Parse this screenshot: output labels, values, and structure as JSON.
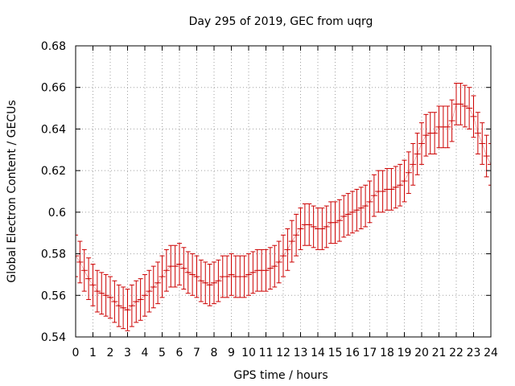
{
  "chart_data": {
    "type": "line",
    "title": "Day 295 of 2019, GEC from uqrg",
    "xlabel": "GPS time / hours",
    "ylabel": "Global Electron Content / GECUs",
    "xlim": [
      0,
      24
    ],
    "ylim": [
      0.54,
      0.68
    ],
    "x_ticks": [
      "0",
      "1",
      "2",
      "3",
      "4",
      "5",
      "6",
      "7",
      "8",
      "9",
      "10",
      "11",
      "12",
      "13",
      "14",
      "15",
      "16",
      "17",
      "18",
      "19",
      "20",
      "21",
      "22",
      "23",
      "24"
    ],
    "y_ticks": [
      "0.54",
      "0.56",
      "0.58",
      "0.6",
      "0.62",
      "0.64",
      "0.66",
      "0.68"
    ],
    "grid": true,
    "legend": "none",
    "series_color": "#cc0000",
    "error_bar_halfwidth": 0.01,
    "series": [
      {
        "x": [
          0,
          0.25,
          0.5,
          0.75,
          1,
          1.25,
          1.5,
          1.75,
          2,
          2.25,
          2.5,
          2.75,
          3,
          3.25,
          3.5,
          3.75,
          4,
          4.25,
          4.5,
          4.75,
          5,
          5.25,
          5.5,
          5.75,
          6,
          6.25,
          6.5,
          6.75,
          7,
          7.25,
          7.5,
          7.75,
          8,
          8.25,
          8.5,
          8.75,
          9,
          9.25,
          9.5,
          9.75,
          10,
          10.25,
          10.5,
          10.75,
          11,
          11.25,
          11.5,
          11.75,
          12,
          12.25,
          12.5,
          12.75,
          13,
          13.25,
          13.5,
          13.75,
          14,
          14.25,
          14.5,
          14.75,
          15,
          15.25,
          15.5,
          15.75,
          16,
          16.25,
          16.5,
          16.75,
          17,
          17.25,
          17.5,
          17.75,
          18,
          18.25,
          18.5,
          18.75,
          19,
          19.25,
          19.5,
          19.75,
          20,
          20.25,
          20.5,
          20.75,
          21,
          21.25,
          21.5,
          21.75,
          22,
          22.25,
          22.5,
          22.75,
          23,
          23.25,
          23.5,
          23.75,
          24
        ],
        "y": [
          0.579,
          0.576,
          0.572,
          0.568,
          0.565,
          0.562,
          0.561,
          0.56,
          0.559,
          0.557,
          0.555,
          0.554,
          0.553,
          0.555,
          0.557,
          0.558,
          0.56,
          0.562,
          0.564,
          0.566,
          0.569,
          0.572,
          0.574,
          0.574,
          0.575,
          0.573,
          0.571,
          0.57,
          0.569,
          0.567,
          0.566,
          0.565,
          0.566,
          0.567,
          0.569,
          0.569,
          0.57,
          0.569,
          0.569,
          0.569,
          0.57,
          0.571,
          0.572,
          0.572,
          0.572,
          0.573,
          0.574,
          0.576,
          0.579,
          0.582,
          0.586,
          0.589,
          0.592,
          0.594,
          0.594,
          0.593,
          0.592,
          0.592,
          0.593,
          0.595,
          0.595,
          0.596,
          0.598,
          0.599,
          0.6,
          0.601,
          0.602,
          0.603,
          0.605,
          0.608,
          0.61,
          0.61,
          0.611,
          0.611,
          0.612,
          0.613,
          0.615,
          0.619,
          0.623,
          0.628,
          0.633,
          0.637,
          0.638,
          0.638,
          0.641,
          0.641,
          0.641,
          0.644,
          0.652,
          0.652,
          0.651,
          0.65,
          0.646,
          0.638,
          0.633,
          0.627,
          0.623
        ]
      }
    ]
  }
}
